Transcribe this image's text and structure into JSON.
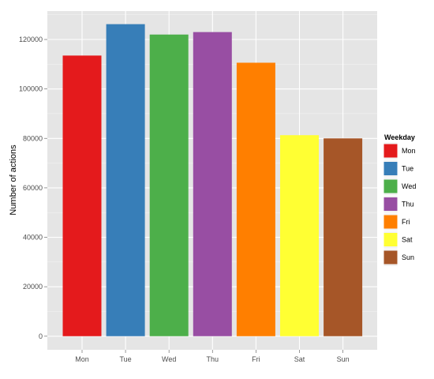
{
  "chart_data": {
    "type": "bar",
    "title": "",
    "xlabel": "",
    "ylabel": "Number of actions",
    "categories": [
      "Mon",
      "Tue",
      "Wed",
      "Thu",
      "Fri",
      "Sat",
      "Sun"
    ],
    "values": [
      113500,
      126200,
      122000,
      123000,
      110600,
      81300,
      80000
    ],
    "colors": [
      "#E41A1C",
      "#377EB8",
      "#4DAF4A",
      "#984EA3",
      "#FF7F00",
      "#FFFF33",
      "#A65628"
    ],
    "ylim": [
      -5500,
      131500
    ],
    "yticks": [
      0,
      20000,
      40000,
      60000,
      80000,
      100000,
      120000
    ],
    "ytick_labels": [
      "0",
      "20000",
      "40000",
      "60000",
      "80000",
      "100000",
      "120000"
    ],
    "grid": true,
    "background": "#E5E5E5",
    "legend": {
      "title": "Weekday",
      "placement": "right",
      "entries": [
        "Mon",
        "Tue",
        "Wed",
        "Thu",
        "Fri",
        "Sat",
        "Sun"
      ]
    }
  }
}
